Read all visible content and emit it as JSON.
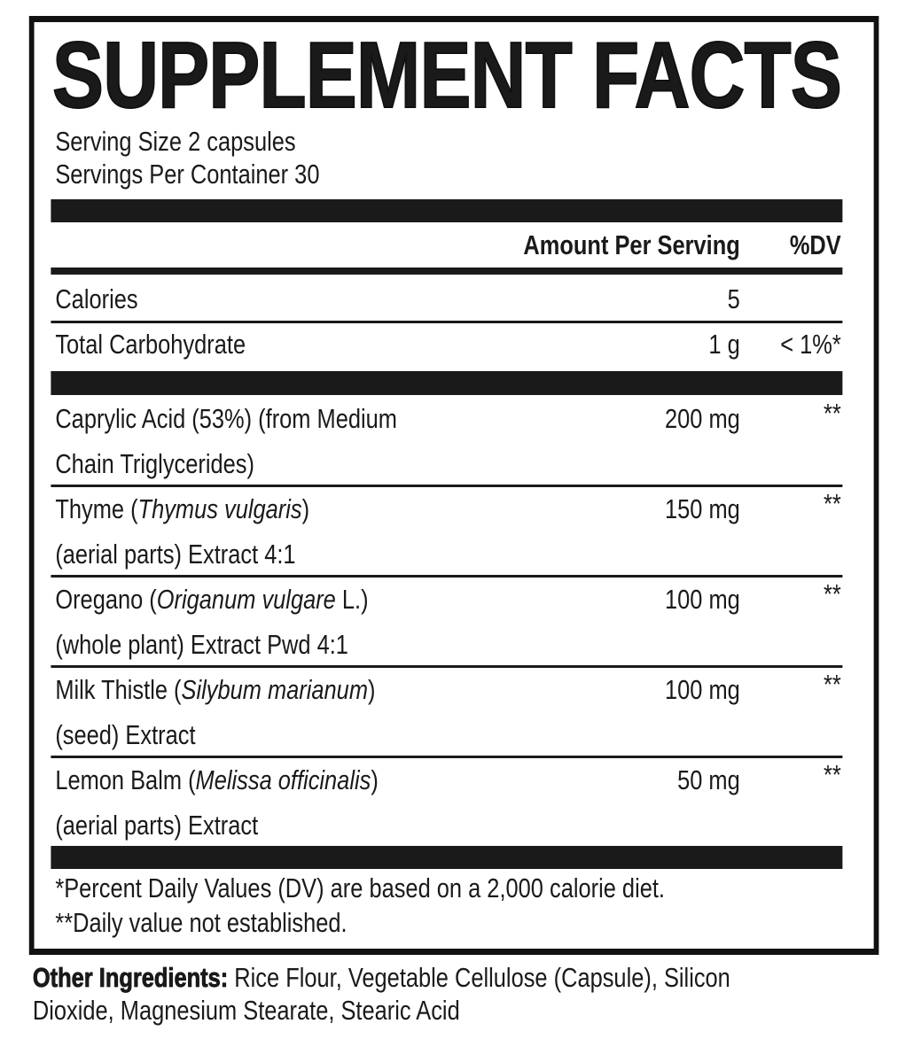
{
  "title": "SUPPLEMENT FACTS",
  "serving_size": "Serving Size 2 capsules",
  "servings_per_container": "Servings Per Container 30",
  "header": {
    "amount": "Amount Per Serving",
    "dv": "%DV"
  },
  "nutrients": [
    {
      "name": "Calories",
      "amount": "5",
      "dv": ""
    },
    {
      "name": "Total Carbohydrate",
      "amount": "1 g",
      "dv": "< 1%*"
    }
  ],
  "ingredients": [
    {
      "pre": "Caprylic Acid (53%) (from Medium",
      "italic": "",
      "post": "",
      "line2": "Chain Triglycerides)",
      "amount": "200 mg",
      "dv": "**"
    },
    {
      "pre": "Thyme (",
      "italic": "Thymus vulgaris",
      "post": ")",
      "line2": "(aerial parts) Extract 4:1",
      "amount": "150 mg",
      "dv": "**"
    },
    {
      "pre": "Oregano (",
      "italic": "Origanum vulgare",
      "post": " L.)",
      "line2": "(whole plant) Extract Pwd 4:1",
      "amount": "100 mg",
      "dv": "**"
    },
    {
      "pre": "Milk Thistle (",
      "italic": "Silybum marianum",
      "post": ")",
      "line2": "(seed) Extract",
      "amount": "100 mg",
      "dv": "**"
    },
    {
      "pre": "Lemon Balm (",
      "italic": "Melissa officinalis",
      "post": ")",
      "line2": "(aerial parts) Extract",
      "amount": "50 mg",
      "dv": "**"
    }
  ],
  "footnotes": [
    "*Percent Daily Values (DV) are based on a 2,000 calorie diet.",
    "**Daily value not established."
  ],
  "other_ingredients": {
    "label": "Other Ingredients:",
    "line1": " Rice Flour, Vegetable Cellulose (Capsule), Silicon",
    "line2": "Dioxide, Magnesium Stearate, Stearic Acid"
  }
}
